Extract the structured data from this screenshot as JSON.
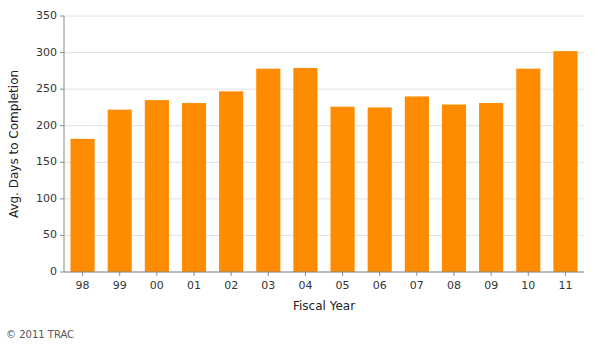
{
  "chart_data": {
    "type": "bar",
    "categories": [
      "98",
      "99",
      "00",
      "01",
      "02",
      "03",
      "04",
      "05",
      "06",
      "07",
      "08",
      "09",
      "10",
      "11"
    ],
    "values": [
      182,
      222,
      235,
      231,
      247,
      278,
      279,
      226,
      225,
      240,
      229,
      231,
      278,
      302
    ],
    "color": "#FF8C00",
    "xlabel": "Fiscal Year",
    "ylabel": "Avg. Days to Completion",
    "annotations": [
      "© 2011 TRAC"
    ],
    "ylim": [
      0,
      350
    ],
    "yticks": [
      0,
      50,
      100,
      150,
      200,
      250,
      300,
      350
    ],
    "grid": true
  }
}
